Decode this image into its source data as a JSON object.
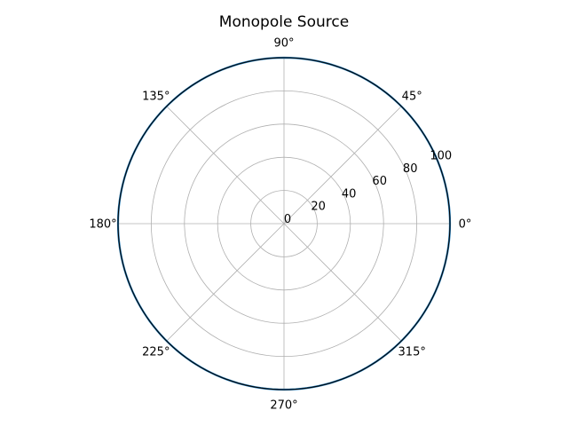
{
  "chart_data": {
    "type": "polar-line",
    "title": "Monopole Source",
    "theta_ticks": [
      "0°",
      "45°",
      "90°",
      "135°",
      "180°",
      "225°",
      "270°",
      "315°"
    ],
    "theta_tick_degrees": [
      0,
      45,
      90,
      135,
      180,
      225,
      270,
      315
    ],
    "r_ticks": [
      0,
      20,
      40,
      60,
      80,
      100
    ],
    "r_tick_labels": [
      "0",
      "20",
      "40",
      "60",
      "80",
      "100"
    ],
    "rlim": [
      0,
      100
    ],
    "grid": true,
    "series": [
      {
        "color": "#1f77b4",
        "theta_degrees": [
          0,
          30,
          60,
          90,
          120,
          150,
          180,
          210,
          240,
          270,
          300,
          330,
          360
        ],
        "r": [
          100,
          100,
          100,
          100,
          100,
          100,
          100,
          100,
          100,
          100,
          100,
          100,
          100
        ]
      }
    ]
  }
}
